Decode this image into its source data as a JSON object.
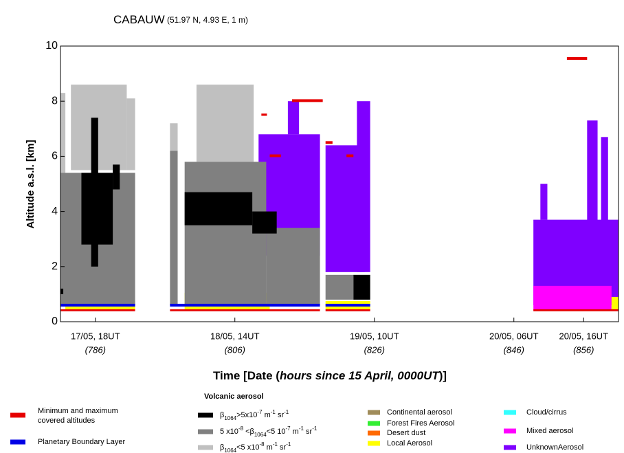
{
  "chart_data": {
    "type": "rect-map",
    "title_parts": [
      {
        "t": "CABAUW"
      },
      {
        "s": " (51.97 N, 4.93 E, 1 m)"
      }
    ],
    "y_label": "Altitude a.s.l. [km]",
    "x_label_parts": [
      {
        "t": "Time [Date ("
      },
      {
        "i": "hours since 15 April, 0000UT"
      },
      {
        "t": ")]"
      }
    ],
    "xlim": [
      781,
      861
    ],
    "ylim": [
      0,
      10
    ],
    "yticks": [
      0,
      2,
      4,
      6,
      8,
      10
    ],
    "xticks": [
      {
        "value": 786,
        "label": "17/05, 18UT",
        "sublabel": "(786)"
      },
      {
        "value": 806,
        "label": "18/05, 14UT",
        "sublabel": "(806)"
      },
      {
        "value": 826,
        "label": "19/05, 10UT",
        "sublabel": "(826)"
      },
      {
        "value": 846,
        "label": "20/05, 06UT",
        "sublabel": "(846)"
      },
      {
        "value": 856,
        "label": "20/05, 16UT",
        "sublabel": "(856)"
      }
    ],
    "legend_heading": "Volcanic aerosol",
    "series": [
      {
        "name_lines": [
          "Minimum and maximum",
          "covered altitudes"
        ],
        "color": "#e60000",
        "rects": [
          [
            781,
            791.7,
            0.38,
            0.45
          ],
          [
            796.7,
            818.2,
            0.38,
            0.45
          ],
          [
            814.2,
            818.6,
            7.97,
            8.07
          ],
          [
            811,
            812.6,
            5.97,
            6.07
          ],
          [
            809.8,
            810.6,
            7.47,
            7.55
          ],
          [
            819,
            825.4,
            0.38,
            0.45
          ],
          [
            819,
            820,
            6.45,
            6.55
          ],
          [
            822,
            823,
            5.97,
            6.07
          ],
          [
            848.8,
            861,
            0.38,
            0.45
          ],
          [
            853.6,
            856.5,
            9.5,
            9.6
          ]
        ]
      },
      {
        "name": "Planetary Boundary Layer",
        "color": "#0000e6",
        "rects": [
          [
            781,
            791.7,
            0.55,
            0.65
          ],
          [
            796.7,
            818.2,
            0.55,
            0.65
          ],
          [
            819,
            825.4,
            0.55,
            0.65
          ]
        ]
      },
      {
        "name_parts": [
          {
            "t": "β"
          },
          {
            "sub": "1064"
          },
          {
            "t": ">5x10"
          },
          {
            "sup": "-7"
          },
          {
            "t": " m"
          },
          {
            "sup": "-1"
          },
          {
            "t": " sr"
          },
          {
            "sup": "-1"
          }
        ],
        "color": "#000000",
        "rects": [
          [
            785.4,
            786.4,
            2,
            7.4
          ],
          [
            784,
            788.5,
            2.8,
            5.4
          ],
          [
            788.5,
            789.5,
            4.8,
            5.7
          ],
          [
            781,
            781.4,
            1.0,
            1.2
          ],
          [
            798.8,
            808.5,
            3.5,
            4.7
          ],
          [
            808.5,
            812,
            3.2,
            4.0
          ],
          [
            823,
            825.4,
            0.8,
            1.7
          ]
        ]
      },
      {
        "name_parts": [
          {
            "t": "5 x10"
          },
          {
            "sup": "-8"
          },
          {
            "t": " <β"
          },
          {
            "sub": "1064"
          },
          {
            "t": "<5 10"
          },
          {
            "sup": "-7"
          },
          {
            "t": " m"
          },
          {
            "sup": "-1"
          },
          {
            "t": " sr"
          },
          {
            "sup": "-1"
          }
        ],
        "color": "#808080",
        "rects": [
          [
            781,
            791.7,
            0.6,
            5.4
          ],
          [
            796.7,
            797.8,
            0.6,
            6.2
          ],
          [
            798.8,
            810.5,
            0.6,
            5.8
          ],
          [
            810.5,
            818.2,
            0.6,
            3.4
          ],
          [
            819,
            823,
            0.8,
            1.7
          ]
        ]
      },
      {
        "name_parts": [
          {
            "t": "β"
          },
          {
            "sub": "1064"
          },
          {
            "t": "<5 x10"
          },
          {
            "sup": "-8"
          },
          {
            "t": " m"
          },
          {
            "sup": "-1"
          },
          {
            "t": " sr"
          },
          {
            "sup": "-1"
          }
        ],
        "color": "#c0c0c0",
        "rects": [
          [
            781,
            781.7,
            5.3,
            8.3
          ],
          [
            782.5,
            790.5,
            5.5,
            8.6
          ],
          [
            790.5,
            791.7,
            5.5,
            8.1
          ],
          [
            796.7,
            797.8,
            6.2,
            7.2
          ],
          [
            800.5,
            808.7,
            5.8,
            8.6
          ]
        ]
      },
      {
        "name": "Continental aerosol",
        "color": "#a08c5a",
        "rects": []
      },
      {
        "name": "Forest Fires Aerosol",
        "color": "#33ee33",
        "rects": []
      },
      {
        "name": "Desert dust",
        "color": "#ff6a00",
        "rects": []
      },
      {
        "name": "Local Aerosol",
        "color": "#ffff00",
        "rects": [
          [
            781.7,
            791.7,
            0.45,
            0.75
          ],
          [
            798.8,
            811,
            0.45,
            1.05
          ],
          [
            819,
            825.4,
            0.45,
            0.75
          ],
          [
            860,
            861,
            0.45,
            0.9
          ]
        ]
      },
      {
        "name": "Cloud/cirrus",
        "color": "#33ffff",
        "rects": []
      },
      {
        "name": "Mixed aerosol",
        "color": "#ff00ff",
        "rects": [
          [
            848.8,
            860,
            0.4,
            1.3
          ]
        ]
      },
      {
        "name": "UnknownAerosol",
        "color": "#7f00ff",
        "rects": [
          [
            809.4,
            818.2,
            2.4,
            6.8
          ],
          [
            813.6,
            815.2,
            6.8,
            8.0
          ],
          [
            819,
            824.6,
            1.8,
            6.4
          ],
          [
            823.5,
            825.4,
            1.8,
            8.0
          ],
          [
            848.8,
            861,
            0.6,
            3.7
          ],
          [
            849.8,
            850.8,
            3.7,
            5.0
          ],
          [
            856.5,
            858,
            3.2,
            7.3
          ],
          [
            858.5,
            859.5,
            3.2,
            6.7
          ]
        ]
      }
    ]
  }
}
